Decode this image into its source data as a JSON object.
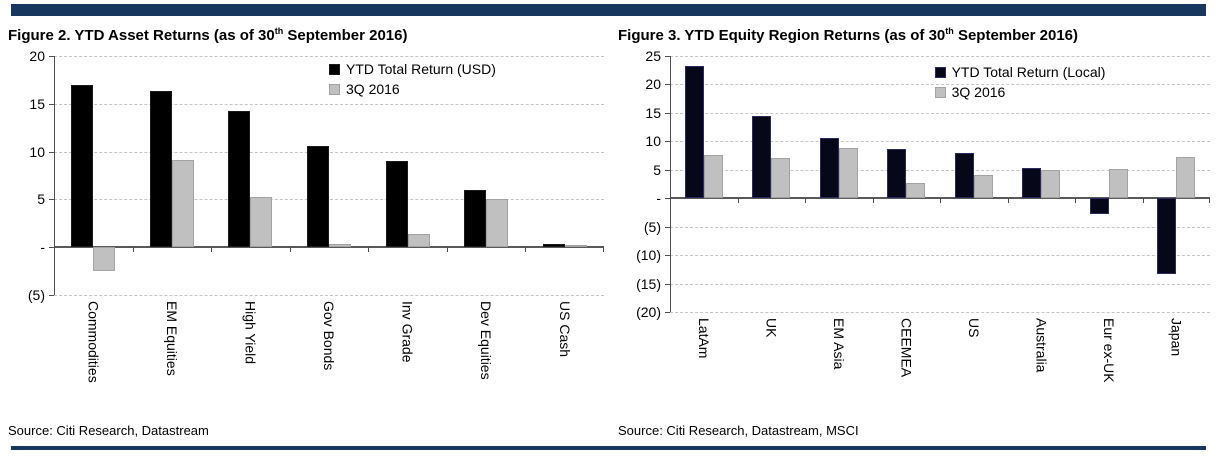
{
  "page": {
    "top_rule_color": "#17375E",
    "bottom_rule_color": "#17375E",
    "background": "#FFFFFF"
  },
  "figures": [
    {
      "title_prefix": "Figure 2. YTD Asset Returns (as of 30",
      "title_sup": "th",
      "title_suffix": " September 2016)",
      "source": "Source: Citi Research, Datastream"
    },
    {
      "title_prefix": "Figure 3. YTD Equity Region Returns (as of 30",
      "title_sup": "th",
      "title_suffix": " September 2016)",
      "source": "Source: Citi Research, Datastream, MSCI"
    }
  ],
  "chart_data": [
    {
      "type": "bar",
      "title": "Figure 2. YTD Asset Returns (as of 30th September 2016)",
      "categories": [
        "Commodities",
        "EM Equities",
        "High Yield",
        "Gov Bonds",
        "Inv Grade",
        "Dev Equities",
        "US Cash"
      ],
      "series": [
        {
          "name": "YTD Total Return (USD)",
          "color": "#000000",
          "border": "#1a1a1a",
          "values": [
            17.0,
            16.3,
            14.2,
            10.6,
            9.0,
            6.0,
            0.3
          ]
        },
        {
          "name": "3Q 2016",
          "color": "#c0c0c0",
          "border": "#a3a3a3",
          "values": [
            -2.5,
            9.1,
            5.3,
            0.3,
            1.4,
            5.0,
            0.1
          ]
        }
      ],
      "xlabel": "",
      "ylabel": "",
      "ylim": [
        -5,
        20
      ],
      "ytick_step": 5,
      "ytick_labels": [
        "20",
        "15",
        "10",
        "5",
        "-",
        "(5)"
      ],
      "grid": true,
      "legend_position": "inside-top-right"
    },
    {
      "type": "bar",
      "title": "Figure 3. YTD Equity Region Returns (as of 30th September 2016)",
      "categories": [
        "LatAm",
        "UK",
        "EM Asia",
        "CEEMEA",
        "US",
        "Australia",
        "Eur ex-UK",
        "Japan"
      ],
      "series": [
        {
          "name": "YTD Total Return (Local)",
          "color": "#07071a",
          "border": "#2a2a5e",
          "values": [
            23.3,
            14.5,
            10.6,
            8.7,
            7.9,
            5.4,
            -2.7,
            -13.4
          ]
        },
        {
          "name": "3Q 2016",
          "color": "#c0c0c0",
          "border": "#a3a3a3",
          "values": [
            7.6,
            7.0,
            8.9,
            2.6,
            4.1,
            5.0,
            5.1,
            7.3
          ]
        }
      ],
      "xlabel": "",
      "ylabel": "",
      "ylim": [
        -20,
        25
      ],
      "ytick_step": 5,
      "ytick_labels": [
        "25",
        "20",
        "15",
        "10",
        "5",
        "-",
        "(5)",
        "(10)",
        "(15)",
        "(20)"
      ],
      "grid": true,
      "legend_position": "inside-top-right"
    }
  ]
}
